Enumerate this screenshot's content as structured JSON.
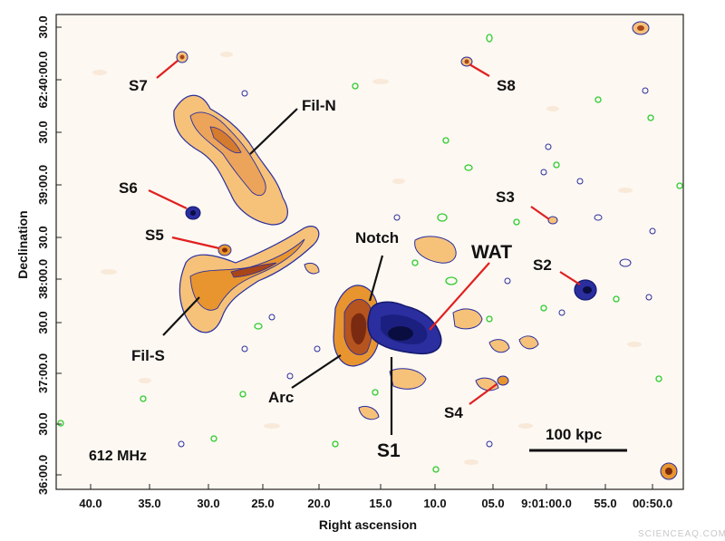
{
  "frequency_label": "612 MHz",
  "scale_bar_label": "100 kpc",
  "axes": {
    "x_label": "Right ascension",
    "y_label": "Declination",
    "x_ticks": [
      "40.0",
      "35.0",
      "30.0",
      "25.0",
      "20.0",
      "15.0",
      "10.0",
      "05.0",
      "9:01:00.0",
      "55.0",
      "00:50.0"
    ],
    "y_ticks": [
      "30.0",
      "62:40:00.0",
      "30.0",
      "39:00.0",
      "30.0",
      "38:00.0",
      "30.0",
      "37:00.0",
      "30.0",
      "36:00.0"
    ]
  },
  "labels": {
    "s7": "S7",
    "s8": "S8",
    "fil_n": "Fil-N",
    "s6": "S6",
    "s3": "S3",
    "s5": "S5",
    "notch": "Notch",
    "wat": "WAT",
    "s2": "S2",
    "fil_s": "Fil-S",
    "arc": "Arc",
    "s4": "S4",
    "s1": "S1"
  },
  "colors": {
    "background": "#fdf8f2",
    "emission_light": "#f6c27a",
    "emission_mid": "#e8952f",
    "emission_dark": "#a8461a",
    "contour_blue": "#2a2e9e",
    "noise_green": "#2ecc2e",
    "pointer_red": "#e02020"
  },
  "watermark": "SCIENCEAQ.COM"
}
